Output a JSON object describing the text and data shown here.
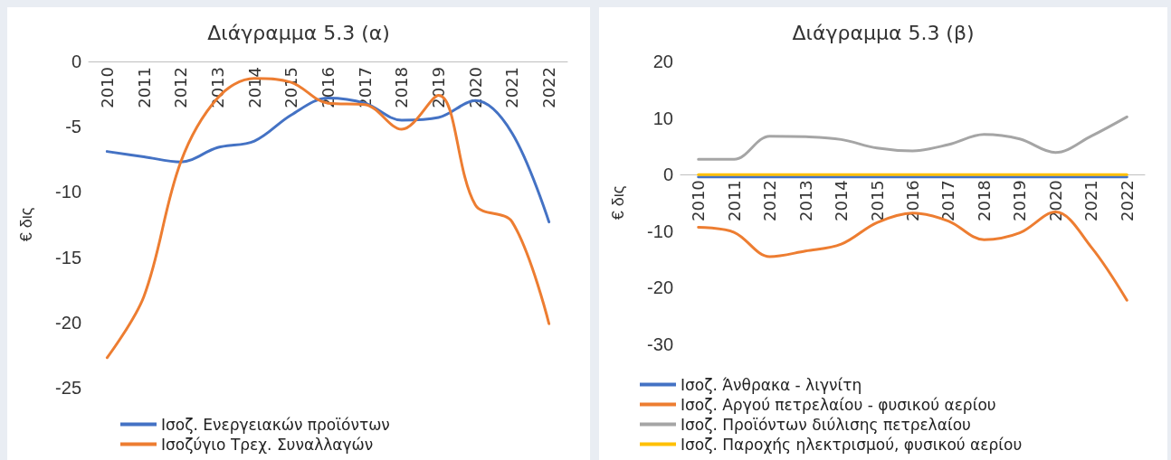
{
  "chart_data": [
    {
      "type": "line",
      "title": "Διάγραμμα 5.3 (α)",
      "ylabel": "€ δις",
      "categories": [
        "2010",
        "2011",
        "2012",
        "2013",
        "2014",
        "2015",
        "2016",
        "2017",
        "2018",
        "2019",
        "2020",
        "2021",
        "2022"
      ],
      "ylim": [
        -25,
        0
      ],
      "yticks": [
        0,
        -5,
        -10,
        -15,
        -20,
        -25
      ],
      "grid": false,
      "legend": "bottom",
      "marker": "none",
      "line_style": "solid",
      "series": [
        {
          "name": "Ισοζ. Ενεργειακών προϊόντων",
          "color": "#4472c4",
          "values": [
            -6.9,
            -7.3,
            -7.7,
            -6.6,
            -6.1,
            -4.1,
            -2.8,
            -3.2,
            -4.5,
            -4.3,
            -3.0,
            -5.5,
            -12.3
          ]
        },
        {
          "name": "Ισοζύγιο Τρεχ. Συναλλαγών",
          "color": "#ed7d31",
          "values": [
            -22.7,
            -18.0,
            -7.7,
            -2.8,
            -1.3,
            -1.6,
            -3.2,
            -3.3,
            -5.2,
            -2.6,
            -11.0,
            -12.3,
            -20.1
          ]
        }
      ]
    },
    {
      "type": "line",
      "title": "Διάγραμμα 5.3 (β)",
      "ylabel": "€ δις",
      "categories": [
        "2010",
        "2011",
        "2012",
        "2013",
        "2014",
        "2015",
        "2016",
        "2017",
        "2018",
        "2019",
        "2020",
        "2021",
        "2022"
      ],
      "ylim": [
        -30,
        20
      ],
      "yticks": [
        20,
        10,
        0,
        -10,
        -20,
        -30
      ],
      "grid": false,
      "legend": "bottom",
      "marker": "none",
      "line_style": "solid",
      "series": [
        {
          "name": "Ισοζ. Άνθρακα - λιγνίτη",
          "color": "#4472c4",
          "values": [
            -0.4,
            -0.4,
            -0.4,
            -0.4,
            -0.4,
            -0.4,
            -0.4,
            -0.4,
            -0.4,
            -0.4,
            -0.4,
            -0.4,
            -0.4
          ]
        },
        {
          "name": "Ισοζ. Αργού πετρελαίου - φυσικού αερίου",
          "color": "#ed7d31",
          "values": [
            -9.3,
            -10.2,
            -14.5,
            -13.5,
            -12.3,
            -8.5,
            -6.8,
            -8.2,
            -11.5,
            -10.3,
            -6.6,
            -12.8,
            -22.2
          ]
        },
        {
          "name": "Ισοζ. Προϊόντων διύλισης πετρελαίου",
          "color": "#a5a5a5",
          "values": [
            2.7,
            2.7,
            6.8,
            6.7,
            6.2,
            4.7,
            4.2,
            5.3,
            7.1,
            6.3,
            3.9,
            6.8,
            10.2
          ]
        },
        {
          "name": "Ισοζ. Παροχής ηλεκτρισμού, φυσικού αερίου",
          "color": "#ffc000",
          "values": [
            0,
            0,
            0,
            0,
            0,
            0,
            0,
            0,
            0,
            0,
            0,
            0,
            0
          ]
        }
      ]
    }
  ]
}
